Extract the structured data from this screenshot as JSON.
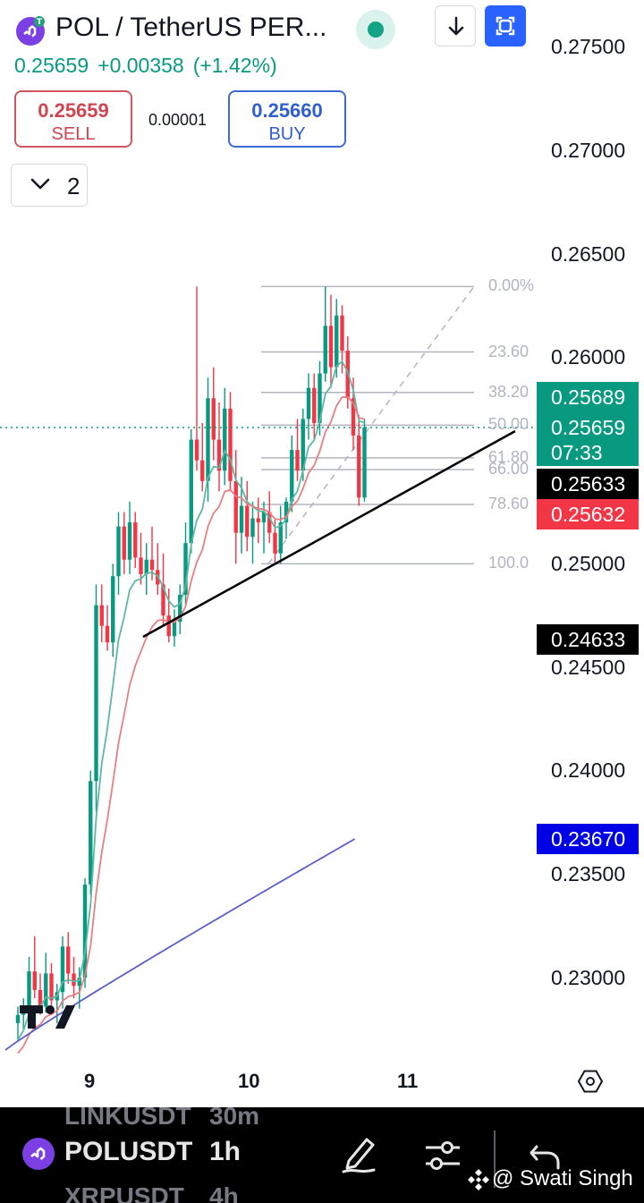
{
  "header": {
    "title": "POL / TetherUS PER...",
    "last_price": "0.25659",
    "change": "+0.00358",
    "change_pct": "(+1.42%)",
    "sell_price": "0.25659",
    "sell_label": "SELL",
    "spread": "0.00001",
    "buy_price": "0.25660",
    "buy_label": "BUY",
    "indicator_count": "2"
  },
  "price_axis": {
    "labels": [
      "0.27500",
      "0.27000",
      "0.26500",
      "0.26000",
      "0.25000",
      "0.24500",
      "0.24000",
      "0.23500",
      "0.23000"
    ]
  },
  "price_tags": {
    "ema_fast": "0.25689",
    "last_price": "0.25659",
    "countdown": "07:33",
    "black_upper": "0.25633",
    "ema_slow": "0.25632",
    "black_lower": "0.24633",
    "ema_long": "0.23670"
  },
  "fib_levels": [
    "0.00%",
    "23.60",
    "38.20",
    "50.00",
    "61.80",
    "66.00",
    "78.60",
    "100.0"
  ],
  "time_axis": {
    "labels": [
      "9",
      "10",
      "11"
    ]
  },
  "colors": {
    "up": "#089981",
    "down": "#f23645",
    "ema_fast": "#5db8a4",
    "ema_slow": "#e87f80",
    "ema_long": "#5b5fc7",
    "fib": "#b2b5be",
    "accent": "#2962ff"
  },
  "bottom_bar": {
    "symbol": "POLUSDT",
    "timeframe": "1h",
    "ghost_symbol_above": "LINKUSDT",
    "ghost_tf_above": "30m",
    "ghost_symbol_below": "XRPUSDT",
    "ghost_tf_below": "4h",
    "watermark": "@ Swati Singh"
  },
  "chart_data": {
    "type": "candlestick",
    "symbol": "POLUSDT",
    "interval": "1h",
    "ylim": [
      0.2265,
      0.2775
    ],
    "x_ticks": [
      "9",
      "10",
      "11"
    ],
    "last_price": 0.25659,
    "series": [
      {
        "type": "line",
        "values_approx_end": 0.25689
      },
      {
        "type": "line",
        "values_approx_end": 0.25632
      },
      {
        "type": "line",
        "values_approx_end": 0.2367
      }
    ],
    "fibonacci": {
      "high": 0.2634,
      "low": 0.25,
      "levels": [
        "0.00%",
        "23.60",
        "38.20",
        "50.00",
        "61.80",
        "66.00",
        "78.60",
        "100.0"
      ]
    },
    "candles": [
      [
        0.2278,
        0.2286,
        0.227,
        0.2282
      ],
      [
        0.2282,
        0.229,
        0.2275,
        0.2286
      ],
      [
        0.2286,
        0.231,
        0.2281,
        0.2303
      ],
      [
        0.2303,
        0.232,
        0.229,
        0.2294
      ],
      [
        0.2294,
        0.2302,
        0.2282,
        0.2286
      ],
      [
        0.2286,
        0.2312,
        0.2283,
        0.2302
      ],
      [
        0.2302,
        0.2307,
        0.2285,
        0.2289
      ],
      [
        0.2289,
        0.2297,
        0.2278,
        0.2293
      ],
      [
        0.2293,
        0.232,
        0.2285,
        0.2315
      ],
      [
        0.2315,
        0.2322,
        0.2297,
        0.2302
      ],
      [
        0.2302,
        0.231,
        0.229,
        0.2296
      ],
      [
        0.2296,
        0.2305,
        0.2285,
        0.23
      ],
      [
        0.23,
        0.2348,
        0.2295,
        0.2345
      ],
      [
        0.2345,
        0.24,
        0.234,
        0.2395
      ],
      [
        0.2395,
        0.249,
        0.238,
        0.248
      ],
      [
        0.248,
        0.249,
        0.2462,
        0.247
      ],
      [
        0.247,
        0.248,
        0.2458,
        0.2462
      ],
      [
        0.2462,
        0.25,
        0.2455,
        0.2494
      ],
      [
        0.2494,
        0.2525,
        0.2485,
        0.2518
      ],
      [
        0.2518,
        0.2525,
        0.2495,
        0.2502
      ],
      [
        0.2502,
        0.253,
        0.2495,
        0.252
      ],
      [
        0.252,
        0.2525,
        0.2498,
        0.2503
      ],
      [
        0.2503,
        0.2515,
        0.249,
        0.2495
      ],
      [
        0.2495,
        0.251,
        0.2485,
        0.2502
      ],
      [
        0.2502,
        0.2518,
        0.2492,
        0.2497
      ],
      [
        0.2497,
        0.251,
        0.2485,
        0.249
      ],
      [
        0.249,
        0.2505,
        0.247,
        0.2475
      ],
      [
        0.2475,
        0.2488,
        0.2462,
        0.2465
      ],
      [
        0.2465,
        0.2478,
        0.246,
        0.2472
      ],
      [
        0.2472,
        0.249,
        0.2466,
        0.2485
      ],
      [
        0.2485,
        0.252,
        0.248,
        0.251
      ],
      [
        0.251,
        0.2565,
        0.2505,
        0.256
      ],
      [
        0.256,
        0.2634,
        0.2545,
        0.255
      ],
      [
        0.255,
        0.2568,
        0.2535,
        0.254
      ],
      [
        0.254,
        0.259,
        0.253,
        0.258
      ],
      [
        0.258,
        0.2595,
        0.255,
        0.256
      ],
      [
        0.256,
        0.2578,
        0.2535,
        0.2545
      ],
      [
        0.2545,
        0.2585,
        0.2538,
        0.2575
      ],
      [
        0.2575,
        0.2583,
        0.2535,
        0.254
      ],
      [
        0.254,
        0.2555,
        0.25,
        0.2515
      ],
      [
        0.2515,
        0.2542,
        0.2505,
        0.2528
      ],
      [
        0.2528,
        0.254,
        0.2506,
        0.2513
      ],
      [
        0.2513,
        0.253,
        0.25,
        0.2522
      ],
      [
        0.2522,
        0.2532,
        0.251,
        0.252
      ],
      [
        0.252,
        0.253,
        0.2505,
        0.2525
      ],
      [
        0.2525,
        0.2535,
        0.251,
        0.2515
      ],
      [
        0.2515,
        0.2522,
        0.25,
        0.2505
      ],
      [
        0.2505,
        0.2528,
        0.25,
        0.252
      ],
      [
        0.252,
        0.2532,
        0.2512,
        0.253
      ],
      [
        0.253,
        0.2562,
        0.2525,
        0.2555
      ],
      [
        0.2555,
        0.257,
        0.254,
        0.2545
      ],
      [
        0.2545,
        0.2575,
        0.254,
        0.257
      ],
      [
        0.257,
        0.2592,
        0.256,
        0.2585
      ],
      [
        0.2585,
        0.2592,
        0.256,
        0.2568
      ],
      [
        0.2568,
        0.2598,
        0.2562,
        0.2592
      ],
      [
        0.2592,
        0.2634,
        0.2588,
        0.2615
      ],
      [
        0.2615,
        0.263,
        0.2585,
        0.2595
      ],
      [
        0.2595,
        0.2628,
        0.259,
        0.262
      ],
      [
        0.262,
        0.2625,
        0.2592,
        0.2603
      ],
      [
        0.2603,
        0.261,
        0.2575,
        0.258
      ],
      [
        0.258,
        0.259,
        0.2555,
        0.2562
      ],
      [
        0.2562,
        0.2572,
        0.2528,
        0.2532
      ],
      [
        0.2532,
        0.257,
        0.253,
        0.2566
      ]
    ]
  }
}
